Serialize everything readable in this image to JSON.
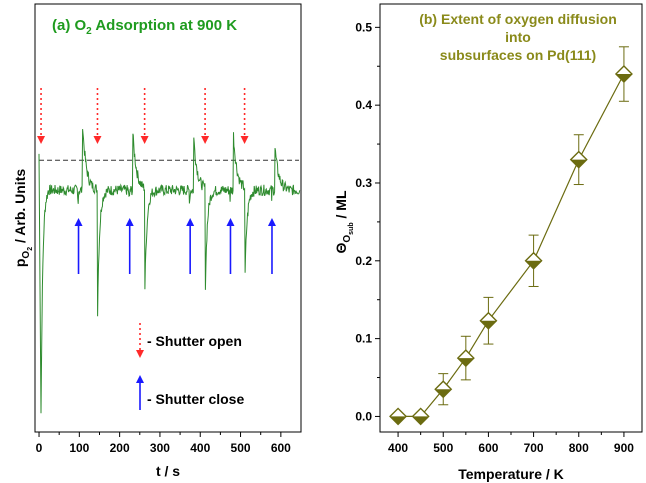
{
  "chart_data": [
    {
      "type": "line",
      "title": "(a) O",
      "title_sub": "2",
      "title_rest": " Adsorption at 900 K",
      "title_color": "#1f9b1f",
      "xlabel": "t / s",
      "ylabel": "p",
      "ylabel_sub": "O",
      "ylabel_subsub": "2",
      "ylabel_rest": " / Arb. Units",
      "xlim": [
        -10,
        650
      ],
      "xticks": [
        0,
        100,
        200,
        300,
        400,
        500,
        600
      ],
      "ylim": [
        0,
        1
      ],
      "y_ticks_labeled": false,
      "baseline_level": 0.635,
      "steady_level": 0.565,
      "line_color": "#2e8b2e",
      "series": [
        {
          "name": "",
          "color": "#2e8b2e"
        }
      ],
      "events": [
        {
          "time": 5,
          "kind": "open",
          "peak": 0.68,
          "recover": 0.02
        },
        {
          "time": 98,
          "kind": "close",
          "peak": 0.0,
          "recover": 0.0
        },
        {
          "time": 108,
          "kind": "spike",
          "peak": 0.72,
          "recover": 0.0
        },
        {
          "time": 145,
          "kind": "dip",
          "peak": 0.27,
          "recover": 0.0
        },
        {
          "time": 225,
          "kind": "close",
          "peak": 0.0,
          "recover": 0.0
        },
        {
          "time": 232,
          "kind": "spike",
          "peak": 0.71,
          "recover": 0.0
        },
        {
          "time": 262,
          "kind": "dip",
          "peak": 0.29,
          "recover": 0.0
        },
        {
          "time": 375,
          "kind": "close",
          "peak": 0.0,
          "recover": 0.0
        },
        {
          "time": 383,
          "kind": "spike",
          "peak": 0.7,
          "recover": 0.0
        },
        {
          "time": 412,
          "kind": "dip",
          "peak": 0.3,
          "recover": 0.0
        },
        {
          "time": 475,
          "kind": "close",
          "peak": 0.0,
          "recover": 0.0
        },
        {
          "time": 482,
          "kind": "spike",
          "peak": 0.7,
          "recover": 0.0
        },
        {
          "time": 510,
          "kind": "dip",
          "peak": 0.3,
          "recover": 0.0
        },
        {
          "time": 578,
          "kind": "close",
          "peak": 0.0,
          "recover": 0.0
        },
        {
          "time": 585,
          "kind": "spike",
          "peak": 0.67,
          "recover": 0.0
        }
      ],
      "shutter_open_times": [
        5,
        145,
        262,
        412,
        510
      ],
      "shutter_close_times": [
        98,
        225,
        375,
        475,
        578
      ],
      "legend": {
        "open_label": "- Shutter open",
        "close_label": "- Shutter close",
        "open_color": "#ff2a2a",
        "close_color": "#1a1aff"
      }
    },
    {
      "type": "line",
      "title_lines": [
        "(b) Extent of oxygen diffusion",
        "into",
        "subsurfaces on Pd(111)"
      ],
      "title_color": "#8a8a1a",
      "xlabel": "Temperature / K",
      "ylabel": "Θ",
      "ylabel_sub": "O",
      "ylabel_subsub": "sub",
      "ylabel_rest": " / ML",
      "xlim": [
        360,
        940
      ],
      "ylim": [
        -0.02,
        0.53
      ],
      "xticks": [
        400,
        500,
        600,
        700,
        800,
        900
      ],
      "yticks": [
        0.0,
        0.1,
        0.2,
        0.3,
        0.4,
        0.5
      ],
      "ytick_labels": [
        "0.0",
        "0.1",
        "0.2",
        "0.3",
        "0.4",
        "0.5"
      ],
      "marker": "diamond",
      "line_color": "#6b6b10",
      "series": [
        {
          "name": "",
          "color": "#6b6b10",
          "x": [
            400,
            450,
            500,
            550,
            600,
            700,
            800,
            900
          ],
          "y": [
            0.0,
            0.0,
            0.035,
            0.075,
            0.123,
            0.2,
            0.33,
            0.44
          ],
          "err": [
            0.0,
            0.0,
            0.02,
            0.028,
            0.03,
            0.033,
            0.032,
            0.035
          ]
        }
      ]
    }
  ]
}
